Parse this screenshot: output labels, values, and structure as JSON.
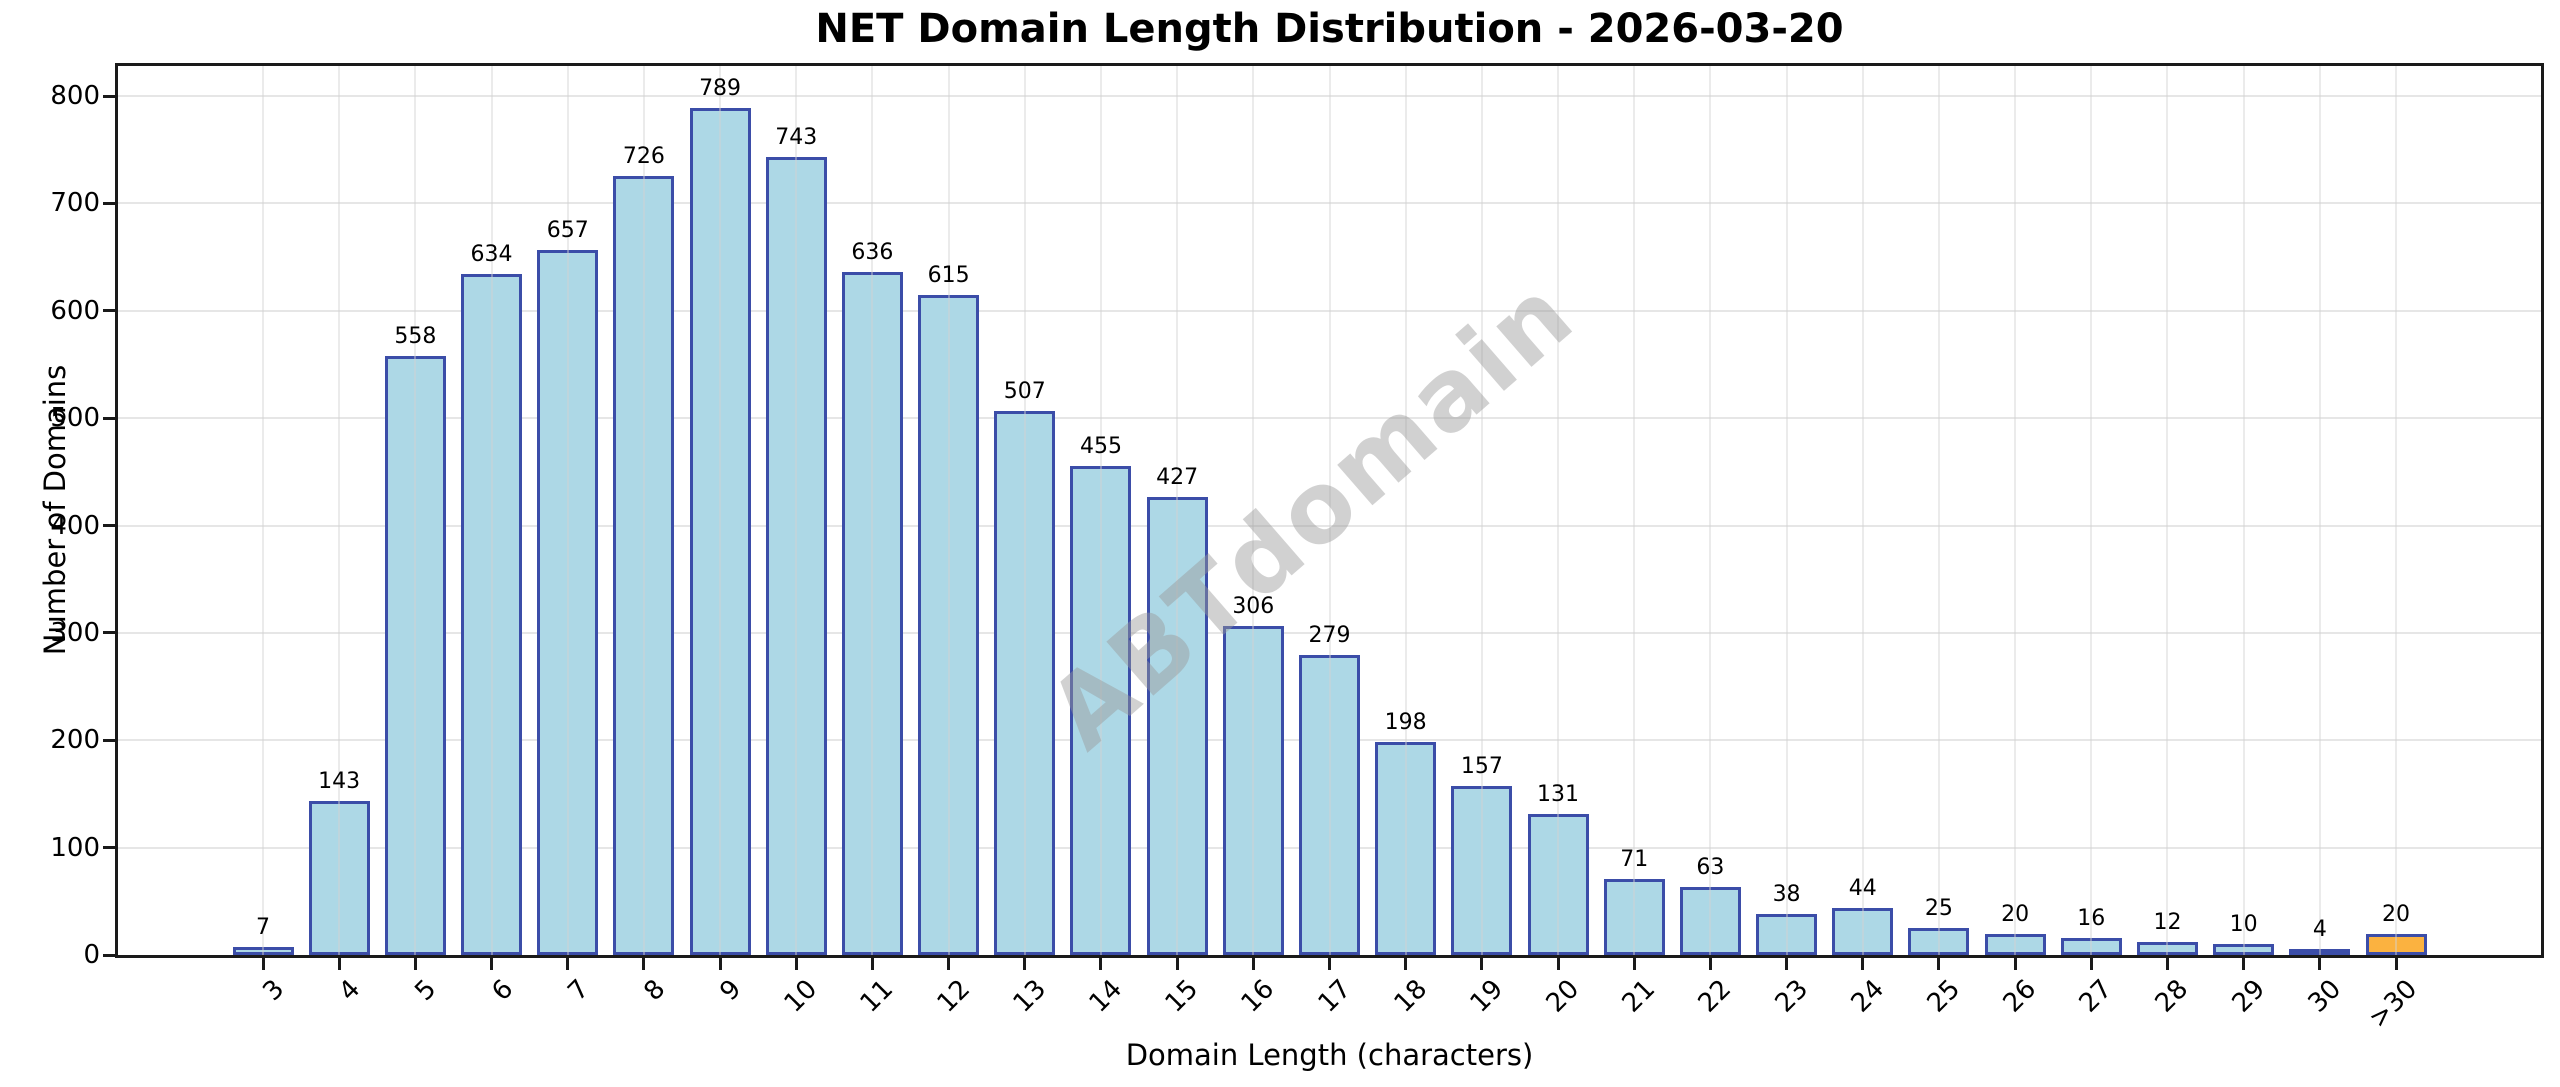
{
  "chart_data": {
    "type": "bar",
    "title": "NET Domain Length Distribution - 2026-03-20",
    "xlabel": "Domain Length (characters)",
    "ylabel": "Number of Domains",
    "categories": [
      "3",
      "4",
      "5",
      "6",
      "7",
      "8",
      "9",
      "10",
      "11",
      "12",
      "13",
      "14",
      "15",
      "16",
      "17",
      "18",
      "19",
      "20",
      "21",
      "22",
      "23",
      "24",
      "25",
      "26",
      "27",
      "28",
      "29",
      "30",
      ">30"
    ],
    "values": [
      7,
      143,
      558,
      634,
      657,
      726,
      789,
      743,
      636,
      615,
      507,
      455,
      427,
      306,
      279,
      198,
      157,
      131,
      71,
      63,
      38,
      44,
      25,
      20,
      16,
      12,
      10,
      4,
      20
    ],
    "ylim": [
      0,
      828
    ],
    "yticks": [
      0,
      100,
      200,
      300,
      400,
      500,
      600,
      700,
      800
    ],
    "grid": true,
    "legend": "none",
    "bar_color": "#add8e6",
    "bar_edge_color": "#3b4da8",
    "highlight_category": ">30",
    "highlight_color": "#fbb240",
    "watermark": "ABTdomain"
  }
}
